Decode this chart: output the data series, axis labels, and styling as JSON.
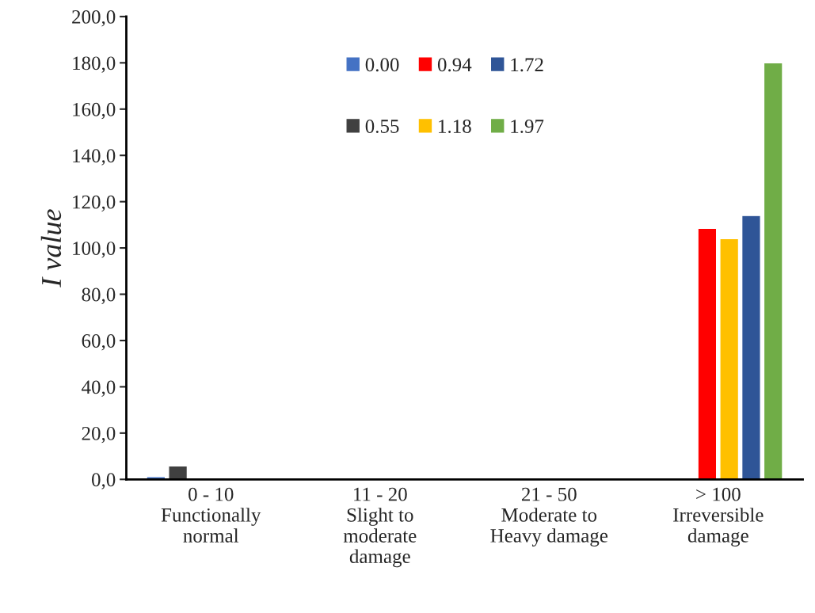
{
  "chart_data": {
    "type": "bar",
    "categories": [
      "0 - 10\nFunctionally\nnormal",
      "11 - 20\nSlight to\nmoderate\ndamage",
      "21 - 50\nModerate to\nHeavy damage",
      "> 100\nIrreversible\ndamage"
    ],
    "ylabel": "I value",
    "series": [
      {
        "name": "0.00",
        "color": "#4472c4",
        "values": [
          1.2,
          null,
          null,
          null
        ]
      },
      {
        "name": "0.55",
        "color": "#404040",
        "values": [
          5.8,
          null,
          null,
          null
        ]
      },
      {
        "name": "0.94",
        "color": "#ff0000",
        "values": [
          null,
          null,
          null,
          108.5
        ]
      },
      {
        "name": "1.18",
        "color": "#ffc000",
        "values": [
          null,
          null,
          null,
          104
        ]
      },
      {
        "name": "1.72",
        "color": "#2f5597",
        "values": [
          null,
          null,
          null,
          114
        ]
      },
      {
        "name": "1.97",
        "color": "#70ad47",
        "values": [
          null,
          null,
          null,
          180
        ]
      }
    ],
    "ylim": [
      0,
      200
    ],
    "yticks": [
      {
        "value": 0,
        "label": "0,0"
      },
      {
        "value": 20,
        "label": "20,0"
      },
      {
        "value": 40,
        "label": "40,0"
      },
      {
        "value": 60,
        "label": "60,0"
      },
      {
        "value": 80,
        "label": "80,0"
      },
      {
        "value": 100,
        "label": "100,0"
      },
      {
        "value": 120,
        "label": "120,0"
      },
      {
        "value": 140,
        "label": "140,0"
      },
      {
        "value": 160,
        "label": "160,0"
      },
      {
        "value": 180,
        "label": "180,0"
      },
      {
        "value": 200,
        "label": "200,0"
      }
    ],
    "grid": false,
    "legend": "top left"
  }
}
